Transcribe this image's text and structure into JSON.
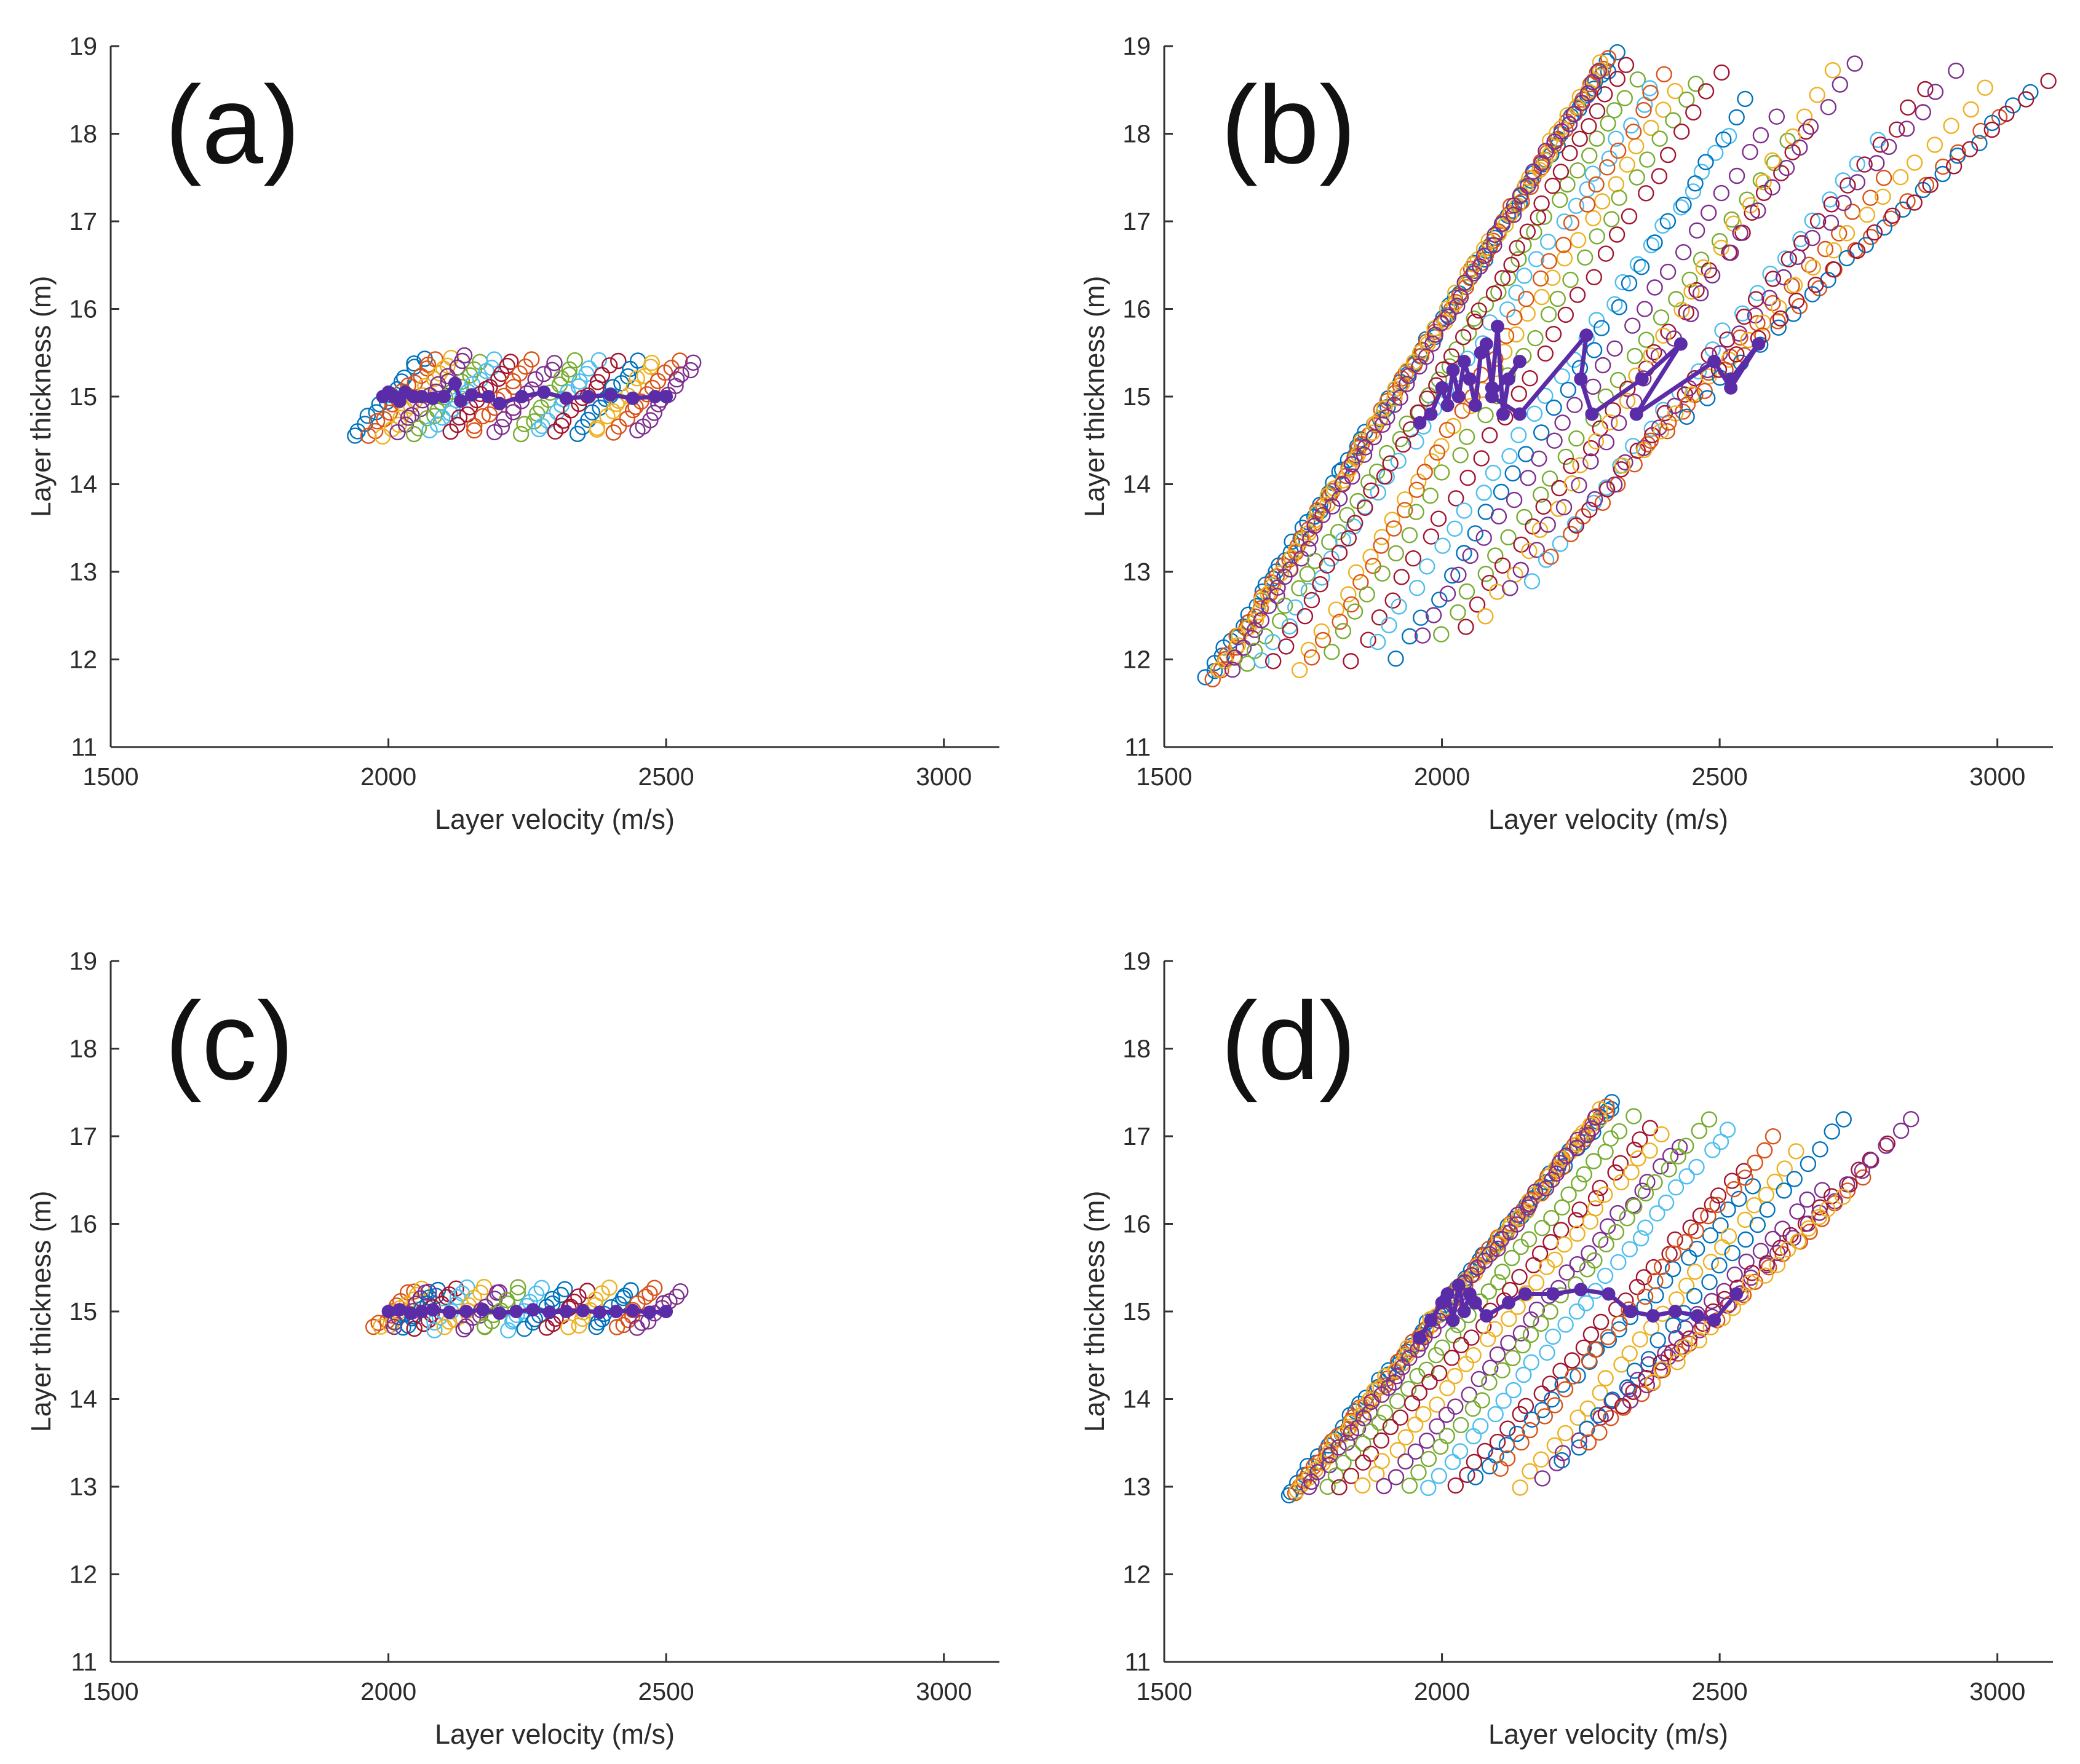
{
  "figure": {
    "panel_count": 4
  },
  "colors": {
    "best_path": "#5a2ca8",
    "cycle": [
      "#0072bd",
      "#d95319",
      "#edb120",
      "#7e2f8e",
      "#77ac30",
      "#4dbeee",
      "#a2142f"
    ],
    "axis": "#333333",
    "text": "#2b2b2b"
  },
  "chart_data": [
    {
      "panel": "(a)",
      "type": "scatter",
      "xlabel": "Layer velocity   (m/s)",
      "ylabel": "Layer thickness   (m)",
      "xlim": [
        1500,
        3100
      ],
      "ylim": [
        11,
        19
      ],
      "xticks": [
        1500,
        2000,
        2500,
        3000
      ],
      "yticks": [
        11,
        12,
        13,
        14,
        15,
        16,
        17,
        18,
        19
      ],
      "candidate_clouds": [
        {
          "x_start": 1940,
          "y_start": 14.55,
          "x_end": 2060,
          "y_end": 15.45,
          "count": 14,
          "color_index": 0
        },
        {
          "x_start": 1965,
          "y_start": 14.55,
          "x_end": 2085,
          "y_end": 15.45,
          "count": 14,
          "color_index": 1
        },
        {
          "x_start": 1995,
          "y_start": 14.55,
          "x_end": 2115,
          "y_end": 15.45,
          "count": 14,
          "color_index": 2
        },
        {
          "x_start": 2020,
          "y_start": 14.6,
          "x_end": 2140,
          "y_end": 15.45,
          "count": 14,
          "color_index": 3
        },
        {
          "x_start": 2050,
          "y_start": 14.6,
          "x_end": 2165,
          "y_end": 15.4,
          "count": 13,
          "color_index": 4
        },
        {
          "x_start": 2080,
          "y_start": 14.6,
          "x_end": 2195,
          "y_end": 15.4,
          "count": 13,
          "color_index": 5
        },
        {
          "x_start": 2110,
          "y_start": 14.6,
          "x_end": 2220,
          "y_end": 15.4,
          "count": 13,
          "color_index": 6
        },
        {
          "x_start": 2150,
          "y_start": 14.6,
          "x_end": 2260,
          "y_end": 15.4,
          "count": 12,
          "color_index": 1
        },
        {
          "x_start": 2190,
          "y_start": 14.6,
          "x_end": 2300,
          "y_end": 15.4,
          "count": 12,
          "color_index": 3
        },
        {
          "x_start": 2240,
          "y_start": 14.6,
          "x_end": 2340,
          "y_end": 15.4,
          "count": 12,
          "color_index": 4
        },
        {
          "x_start": 2270,
          "y_start": 14.6,
          "x_end": 2375,
          "y_end": 15.4,
          "count": 12,
          "color_index": 5
        },
        {
          "x_start": 2300,
          "y_start": 14.6,
          "x_end": 2410,
          "y_end": 15.4,
          "count": 12,
          "color_index": 6
        },
        {
          "x_start": 2340,
          "y_start": 14.6,
          "x_end": 2450,
          "y_end": 15.4,
          "count": 12,
          "color_index": 0
        },
        {
          "x_start": 2370,
          "y_start": 14.6,
          "x_end": 2480,
          "y_end": 15.4,
          "count": 12,
          "color_index": 2
        },
        {
          "x_start": 2410,
          "y_start": 14.6,
          "x_end": 2520,
          "y_end": 15.4,
          "count": 12,
          "color_index": 1
        },
        {
          "x_start": 2450,
          "y_start": 14.6,
          "x_end": 2550,
          "y_end": 15.4,
          "count": 12,
          "color_index": 3
        }
      ],
      "best_path": {
        "x": [
          1990,
          2000,
          2010,
          2020,
          2030,
          2045,
          2060,
          2080,
          2100,
          2120,
          2130,
          2150,
          2180,
          2200,
          2240,
          2280,
          2320,
          2360,
          2400,
          2440,
          2480,
          2500
        ],
        "y": [
          15.0,
          15.05,
          15.0,
          14.95,
          15.05,
          15.0,
          15.0,
          14.98,
          15.0,
          15.15,
          14.95,
          15.02,
          15.0,
          14.92,
          15.0,
          15.05,
          14.98,
          15.0,
          15.02,
          14.98,
          15.0,
          15.0
        ]
      }
    },
    {
      "panel": "(b)",
      "type": "scatter",
      "xlabel": "Layer velocity   (m/s)",
      "ylabel": "Layer thickness   (m)",
      "xlim": [
        1500,
        3100
      ],
      "ylim": [
        11,
        19
      ],
      "xticks": [
        1500,
        2000,
        2500,
        3000
      ],
      "yticks": [
        11,
        12,
        13,
        14,
        15,
        16,
        17,
        18,
        19
      ],
      "candidate_clouds": [
        {
          "x_start": 1580,
          "y_start": 11.8,
          "x_end": 2310,
          "y_end": 18.9,
          "count": 90,
          "color_index": 0
        },
        {
          "x_start": 1590,
          "y_start": 11.8,
          "x_end": 2300,
          "y_end": 18.85,
          "count": 80,
          "color_index": 1
        },
        {
          "x_start": 1600,
          "y_start": 11.85,
          "x_end": 2290,
          "y_end": 18.8,
          "count": 70,
          "color_index": 2
        },
        {
          "x_start": 1620,
          "y_start": 11.9,
          "x_end": 2280,
          "y_end": 18.7,
          "count": 60,
          "color_index": 3
        },
        {
          "x_start": 1650,
          "y_start": 11.95,
          "x_end": 2350,
          "y_end": 18.6,
          "count": 40,
          "color_index": 4
        },
        {
          "x_start": 1680,
          "y_start": 12.0,
          "x_end": 2380,
          "y_end": 18.5,
          "count": 35,
          "color_index": 5
        },
        {
          "x_start": 1700,
          "y_start": 12.0,
          "x_end": 2330,
          "y_end": 18.8,
          "count": 40,
          "color_index": 6
        },
        {
          "x_start": 1740,
          "y_start": 11.9,
          "x_end": 2420,
          "y_end": 18.5,
          "count": 32,
          "color_index": 2
        },
        {
          "x_start": 1770,
          "y_start": 12.0,
          "x_end": 2400,
          "y_end": 18.7,
          "count": 32,
          "color_index": 1
        },
        {
          "x_start": 1800,
          "y_start": 12.1,
          "x_end": 2460,
          "y_end": 18.6,
          "count": 30,
          "color_index": 4
        },
        {
          "x_start": 1840,
          "y_start": 12.0,
          "x_end": 2500,
          "y_end": 18.7,
          "count": 30,
          "color_index": 6
        },
        {
          "x_start": 1880,
          "y_start": 12.2,
          "x_end": 2520,
          "y_end": 18.0,
          "count": 28,
          "color_index": 5
        },
        {
          "x_start": 1920,
          "y_start": 12.0,
          "x_end": 2550,
          "y_end": 18.4,
          "count": 28,
          "color_index": 0
        },
        {
          "x_start": 1960,
          "y_start": 12.3,
          "x_end": 2600,
          "y_end": 18.2,
          "count": 28,
          "color_index": 3
        },
        {
          "x_start": 2000,
          "y_start": 12.3,
          "x_end": 2620,
          "y_end": 17.9,
          "count": 26,
          "color_index": 4
        },
        {
          "x_start": 2040,
          "y_start": 12.4,
          "x_end": 2660,
          "y_end": 18.0,
          "count": 26,
          "color_index": 6
        },
        {
          "x_start": 2080,
          "y_start": 12.5,
          "x_end": 2700,
          "y_end": 18.7,
          "count": 26,
          "color_index": 2
        },
        {
          "x_start": 2120,
          "y_start": 12.8,
          "x_end": 2740,
          "y_end": 18.8,
          "count": 26,
          "color_index": 3
        },
        {
          "x_start": 2160,
          "y_start": 12.9,
          "x_end": 2780,
          "y_end": 17.9,
          "count": 24,
          "color_index": 5
        },
        {
          "x_start": 2200,
          "y_start": 13.2,
          "x_end": 2800,
          "y_end": 17.5,
          "count": 22,
          "color_index": 1
        },
        {
          "x_start": 2240,
          "y_start": 13.5,
          "x_end": 2870,
          "y_end": 18.5,
          "count": 24,
          "color_index": 6
        },
        {
          "x_start": 2280,
          "y_start": 13.8,
          "x_end": 2920,
          "y_end": 18.7,
          "count": 24,
          "color_index": 3
        },
        {
          "x_start": 2330,
          "y_start": 14.2,
          "x_end": 2980,
          "y_end": 18.5,
          "count": 22,
          "color_index": 2
        },
        {
          "x_start": 2380,
          "y_start": 14.5,
          "x_end": 3000,
          "y_end": 18.2,
          "count": 20,
          "color_index": 1
        },
        {
          "x_start": 2440,
          "y_start": 14.8,
          "x_end": 3060,
          "y_end": 18.5,
          "count": 20,
          "color_index": 0
        },
        {
          "x_start": 2500,
          "y_start": 15.3,
          "x_end": 3090,
          "y_end": 18.6,
          "count": 18,
          "color_index": 6
        }
      ],
      "best_path": {
        "x": [
          1960,
          1980,
          2000,
          2010,
          2020,
          2030,
          2040,
          2050,
          2060,
          2070,
          2080,
          2090,
          2100,
          2110,
          2120,
          2140,
          2090,
          2140,
          2260,
          2250,
          2270,
          2360,
          2430,
          2350,
          2490,
          2520,
          2570,
          2520
        ],
        "y": [
          14.7,
          14.8,
          15.1,
          14.9,
          15.3,
          15.0,
          15.4,
          15.2,
          14.9,
          15.5,
          15.6,
          15.1,
          15.8,
          14.8,
          15.2,
          15.4,
          15.0,
          14.8,
          15.7,
          15.2,
          14.8,
          15.2,
          15.6,
          14.8,
          15.4,
          15.1,
          15.6,
          15.2
        ]
      }
    },
    {
      "panel": "(c)",
      "type": "scatter",
      "xlabel": "Layer velocity   (m/s)",
      "ylabel": "Layer thickness   (m)",
      "xlim": [
        1500,
        3100
      ],
      "ylim": [
        11,
        19
      ],
      "xticks": [
        1500,
        2000,
        2500,
        3000
      ],
      "yticks": [
        11,
        12,
        13,
        14,
        15,
        16,
        17,
        18,
        19
      ],
      "candidate_clouds": [
        {
          "x_start": 1975,
          "y_start": 14.8,
          "x_end": 2045,
          "y_end": 15.25,
          "count": 9,
          "color_index": 1
        },
        {
          "x_start": 1990,
          "y_start": 14.8,
          "x_end": 2060,
          "y_end": 15.25,
          "count": 9,
          "color_index": 2
        },
        {
          "x_start": 2005,
          "y_start": 14.8,
          "x_end": 2075,
          "y_end": 15.25,
          "count": 9,
          "color_index": 3
        },
        {
          "x_start": 2025,
          "y_start": 14.8,
          "x_end": 2095,
          "y_end": 15.25,
          "count": 9,
          "color_index": 0
        },
        {
          "x_start": 2050,
          "y_start": 14.8,
          "x_end": 2120,
          "y_end": 15.25,
          "count": 9,
          "color_index": 6
        },
        {
          "x_start": 2080,
          "y_start": 14.8,
          "x_end": 2145,
          "y_end": 15.25,
          "count": 9,
          "color_index": 5
        },
        {
          "x_start": 2105,
          "y_start": 14.8,
          "x_end": 2170,
          "y_end": 15.25,
          "count": 9,
          "color_index": 2
        },
        {
          "x_start": 2135,
          "y_start": 14.8,
          "x_end": 2205,
          "y_end": 15.25,
          "count": 9,
          "color_index": 3
        },
        {
          "x_start": 2170,
          "y_start": 14.8,
          "x_end": 2235,
          "y_end": 15.25,
          "count": 9,
          "color_index": 4
        },
        {
          "x_start": 2210,
          "y_start": 14.8,
          "x_end": 2275,
          "y_end": 15.25,
          "count": 9,
          "color_index": 5
        },
        {
          "x_start": 2250,
          "y_start": 14.8,
          "x_end": 2315,
          "y_end": 15.25,
          "count": 9,
          "color_index": 0
        },
        {
          "x_start": 2290,
          "y_start": 14.8,
          "x_end": 2355,
          "y_end": 15.25,
          "count": 9,
          "color_index": 6
        },
        {
          "x_start": 2330,
          "y_start": 14.8,
          "x_end": 2395,
          "y_end": 15.25,
          "count": 9,
          "color_index": 2
        },
        {
          "x_start": 2370,
          "y_start": 14.8,
          "x_end": 2435,
          "y_end": 15.25,
          "count": 9,
          "color_index": 0
        },
        {
          "x_start": 2410,
          "y_start": 14.8,
          "x_end": 2480,
          "y_end": 15.25,
          "count": 9,
          "color_index": 1
        },
        {
          "x_start": 2450,
          "y_start": 14.8,
          "x_end": 2530,
          "y_end": 15.25,
          "count": 9,
          "color_index": 3
        }
      ],
      "best_path": {
        "x": [
          2000,
          2020,
          2040,
          2060,
          2080,
          2110,
          2140,
          2170,
          2200,
          2230,
          2260,
          2290,
          2320,
          2350,
          2380,
          2410,
          2440,
          2470,
          2500
        ],
        "y": [
          15.0,
          15.02,
          14.98,
          15.0,
          15.02,
          14.99,
          15.0,
          15.02,
          14.98,
          15.0,
          15.02,
          14.99,
          15.0,
          15.01,
          14.99,
          15.0,
          15.01,
          14.99,
          15.0
        ]
      }
    },
    {
      "panel": "(d)",
      "type": "scatter",
      "xlabel": "Layer velocity   (m/s)",
      "ylabel": "Layer thickness   (m)",
      "xlim": [
        1500,
        3100
      ],
      "ylim": [
        11,
        19
      ],
      "xticks": [
        1500,
        2000,
        2500,
        3000
      ],
      "yticks": [
        11,
        12,
        13,
        14,
        15,
        16,
        17,
        18,
        19
      ],
      "candidate_clouds": [
        {
          "x_start": 1720,
          "y_start": 12.9,
          "x_end": 2310,
          "y_end": 17.4,
          "count": 70,
          "color_index": 0
        },
        {
          "x_start": 1730,
          "y_start": 12.9,
          "x_end": 2300,
          "y_end": 17.35,
          "count": 60,
          "color_index": 1
        },
        {
          "x_start": 1740,
          "y_start": 12.95,
          "x_end": 2290,
          "y_end": 17.3,
          "count": 55,
          "color_index": 2
        },
        {
          "x_start": 1760,
          "y_start": 13.0,
          "x_end": 2280,
          "y_end": 17.2,
          "count": 50,
          "color_index": 3
        },
        {
          "x_start": 1790,
          "y_start": 13.0,
          "x_end": 2340,
          "y_end": 17.2,
          "count": 35,
          "color_index": 4
        },
        {
          "x_start": 1820,
          "y_start": 13.0,
          "x_end": 2380,
          "y_end": 17.1,
          "count": 32,
          "color_index": 6
        },
        {
          "x_start": 1860,
          "y_start": 13.0,
          "x_end": 2390,
          "y_end": 17.0,
          "count": 30,
          "color_index": 2
        },
        {
          "x_start": 1900,
          "y_start": 13.0,
          "x_end": 2430,
          "y_end": 16.9,
          "count": 30,
          "color_index": 3
        },
        {
          "x_start": 1940,
          "y_start": 13.0,
          "x_end": 2480,
          "y_end": 17.2,
          "count": 30,
          "color_index": 4
        },
        {
          "x_start": 1980,
          "y_start": 13.0,
          "x_end": 2520,
          "y_end": 17.1,
          "count": 30,
          "color_index": 5
        },
        {
          "x_start": 2020,
          "y_start": 13.0,
          "x_end": 2540,
          "y_end": 16.6,
          "count": 28,
          "color_index": 6
        },
        {
          "x_start": 2060,
          "y_start": 13.1,
          "x_end": 2560,
          "y_end": 16.4,
          "count": 26,
          "color_index": 0
        },
        {
          "x_start": 2100,
          "y_start": 13.2,
          "x_end": 2600,
          "y_end": 17.0,
          "count": 26,
          "color_index": 1
        },
        {
          "x_start": 2140,
          "y_start": 13.0,
          "x_end": 2640,
          "y_end": 16.8,
          "count": 26,
          "color_index": 2
        },
        {
          "x_start": 2180,
          "y_start": 13.1,
          "x_end": 2680,
          "y_end": 16.4,
          "count": 24,
          "color_index": 3
        },
        {
          "x_start": 2220,
          "y_start": 13.3,
          "x_end": 2720,
          "y_end": 17.2,
          "count": 24,
          "color_index": 0
        },
        {
          "x_start": 2260,
          "y_start": 13.5,
          "x_end": 2760,
          "y_end": 16.5,
          "count": 22,
          "color_index": 1
        },
        {
          "x_start": 2300,
          "y_start": 13.8,
          "x_end": 2800,
          "y_end": 16.9,
          "count": 22,
          "color_index": 6
        },
        {
          "x_start": 2340,
          "y_start": 14.0,
          "x_end": 2850,
          "y_end": 17.2,
          "count": 22,
          "color_index": 3
        },
        {
          "x_start": 2380,
          "y_start": 14.2,
          "x_end": 2720,
          "y_end": 16.3,
          "count": 18,
          "color_index": 2
        }
      ],
      "best_path": {
        "x": [
          1960,
          1980,
          2000,
          2010,
          2020,
          2030,
          2040,
          2050,
          2060,
          2080,
          2120,
          2150,
          2200,
          2250,
          2300,
          2340,
          2380,
          2420,
          2460,
          2490,
          2530
        ],
        "y": [
          14.7,
          14.9,
          15.1,
          15.2,
          14.9,
          15.3,
          15.0,
          15.2,
          15.1,
          14.95,
          15.1,
          15.2,
          15.2,
          15.25,
          15.2,
          15.0,
          14.95,
          15.0,
          14.95,
          14.9,
          15.2
        ]
      }
    }
  ]
}
